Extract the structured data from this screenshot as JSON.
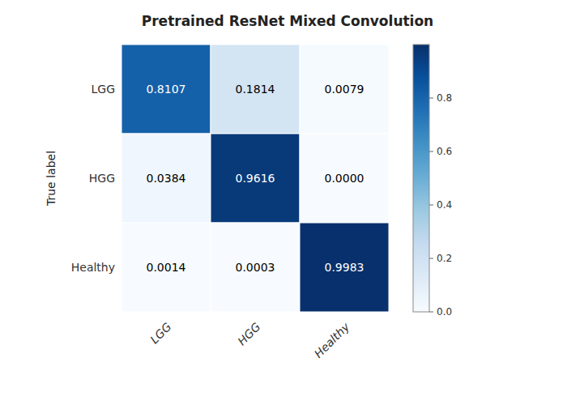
{
  "chart_data": {
    "type": "heatmap",
    "title": "Pretrained ResNet Mixed Convolution",
    "categories": [
      "LGG",
      "HGG",
      "Healthy"
    ],
    "ylabel": "True label",
    "values": [
      [
        0.8107,
        0.1814,
        0.0079
      ],
      [
        0.0384,
        0.9616,
        0.0
      ],
      [
        0.0014,
        0.0003,
        0.9983
      ]
    ],
    "value_labels": [
      [
        "0.8107",
        "0.1814",
        "0.0079"
      ],
      [
        "0.0384",
        "0.9616",
        "0.0000"
      ],
      [
        "0.0014",
        "0.0003",
        "0.9983"
      ]
    ],
    "data_labels": true,
    "colorbar_range": [
      0.0,
      1.0
    ],
    "colorbar_ticks": [
      {
        "value": 0.0,
        "label": "0.0"
      },
      0.2,
      0.4,
      0.6,
      0.8
    ]
  }
}
